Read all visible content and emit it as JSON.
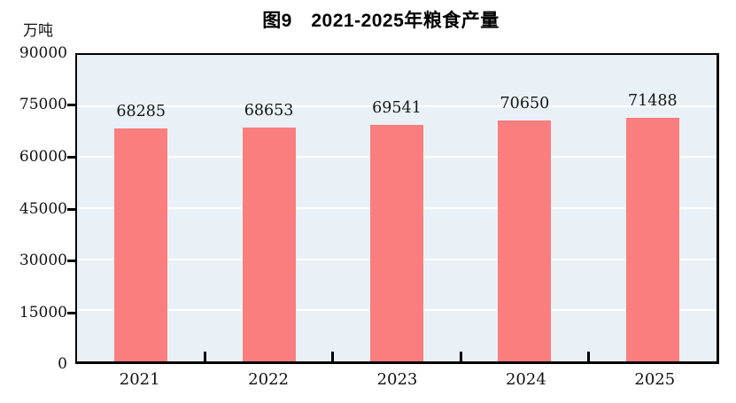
{
  "title": "图9　2021-2025年粮食产量",
  "unit_label": "万吨",
  "colors": {
    "bar": "#fa7e7e",
    "plot_background": "#eaf1f6",
    "gridline": "#ffffff",
    "axis": "#000000"
  },
  "chart_data": {
    "type": "bar",
    "title": "图9　2021-2025年粮食产量",
    "categories": [
      "2021",
      "2022",
      "2023",
      "2024",
      "2025"
    ],
    "values": [
      68285,
      68653,
      69541,
      70650,
      71488
    ],
    "data_labels": [
      "68285",
      "68653",
      "69541",
      "70650",
      "71488"
    ],
    "xlabel": "",
    "ylabel": "万吨",
    "ylim": [
      0,
      90000
    ],
    "yticks": [
      0,
      15000,
      30000,
      45000,
      60000,
      75000,
      90000
    ],
    "ytick_labels": [
      "0",
      "15000",
      "30000",
      "45000",
      "60000",
      "75000",
      "90000"
    ],
    "grid": true,
    "legend": "none"
  }
}
